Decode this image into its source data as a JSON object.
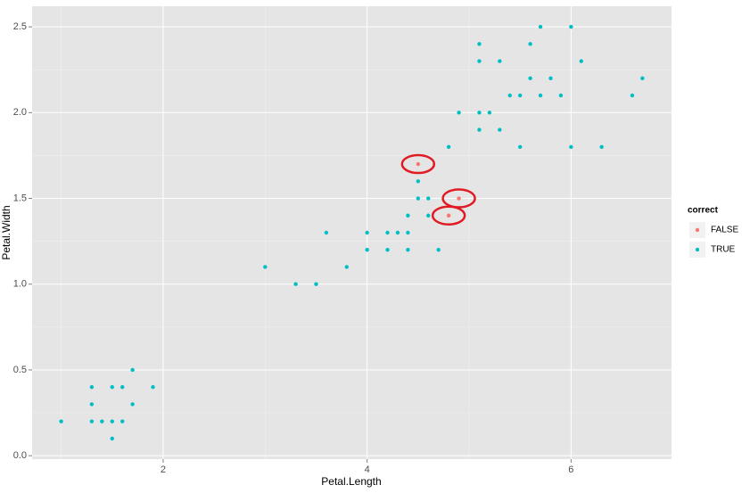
{
  "chart_data": {
    "type": "scatter",
    "x_label": "Petal.Length",
    "y_label": "Petal.Width",
    "legend_title": "correct",
    "legend_position": "right",
    "grid": true,
    "xlim": [
      0.715,
      6.985
    ],
    "ylim": [
      -0.02,
      2.62
    ],
    "xticks": [
      2,
      4,
      6
    ],
    "yticks": [
      {
        "value": 0,
        "label": "0.0"
      },
      0.5,
      {
        "value": 1,
        "label": "1.0"
      },
      1.5,
      {
        "value": 2,
        "label": "2.0"
      },
      2.5
    ],
    "series": [
      {
        "name": "FALSE",
        "color": "#F8766D",
        "x": [
          4.5,
          4.9,
          4.8
        ],
        "values": [
          1.7,
          1.5,
          1.4
        ]
      },
      {
        "name": "TRUE",
        "color": "#00BFC4",
        "x": [
          1.0,
          1.3,
          1.3,
          1.3,
          1.4,
          1.5,
          1.5,
          1.5,
          1.6,
          1.6,
          1.7,
          1.7,
          1.9,
          3.0,
          3.3,
          3.5,
          3.6,
          3.8,
          4.0,
          4.0,
          4.2,
          4.2,
          4.3,
          4.4,
          4.4,
          4.4,
          4.5,
          4.5,
          4.6,
          4.6,
          4.7,
          4.8,
          4.9,
          5.1,
          5.1,
          5.1,
          5.1,
          5.2,
          5.3,
          5.3,
          5.4,
          5.5,
          5.5,
          5.6,
          5.6,
          5.7,
          5.7,
          5.8,
          5.9,
          6.0,
          6.0,
          6.1,
          6.3,
          6.6,
          6.7
        ],
        "values": [
          0.2,
          0.4,
          0.3,
          0.2,
          0.2,
          0.4,
          0.2,
          0.1,
          0.4,
          0.2,
          0.5,
          0.3,
          0.4,
          1.1,
          1.0,
          1.0,
          1.3,
          1.1,
          1.3,
          1.2,
          1.3,
          1.2,
          1.3,
          1.4,
          1.3,
          1.2,
          1.6,
          1.5,
          1.5,
          1.4,
          1.2,
          1.8,
          2.0,
          2.4,
          2.3,
          2.0,
          1.9,
          2.0,
          2.3,
          1.9,
          2.1,
          2.1,
          1.8,
          2.4,
          2.2,
          2.5,
          2.1,
          2.2,
          2.1,
          2.5,
          1.8,
          2.3,
          1.8,
          2.1,
          2.2
        ]
      }
    ]
  }
}
